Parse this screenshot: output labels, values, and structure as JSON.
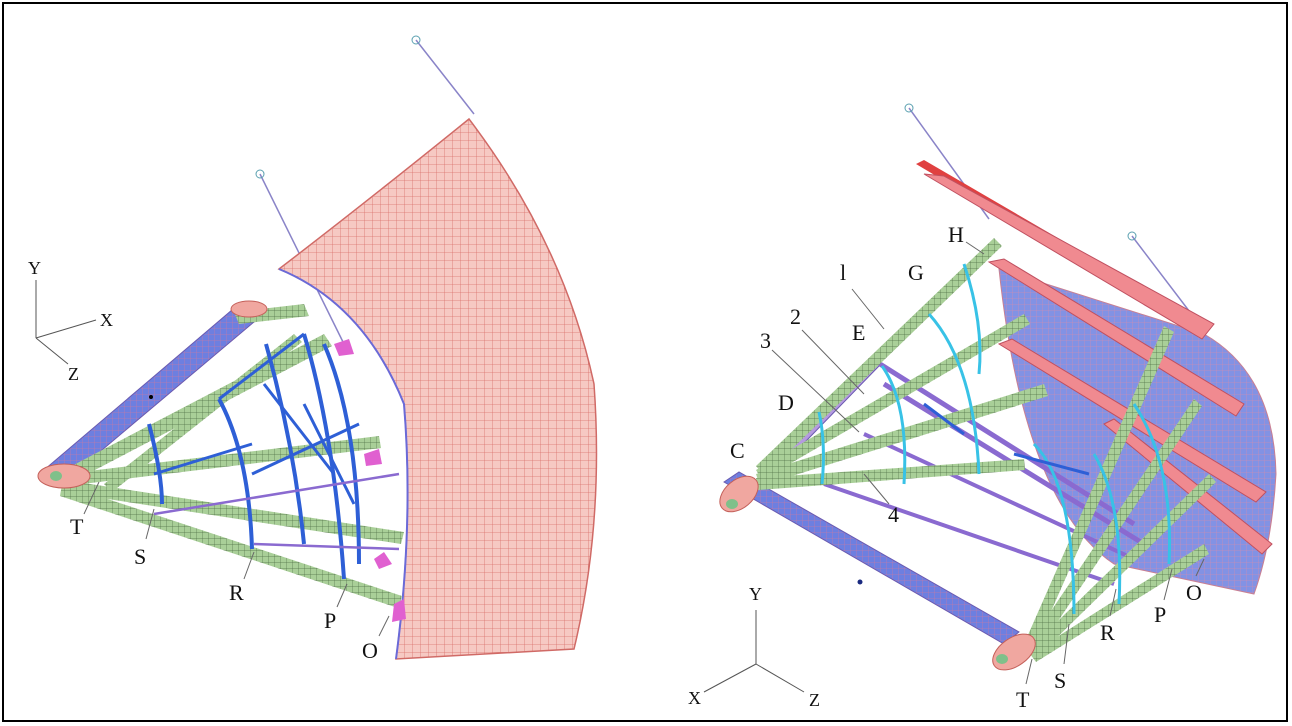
{
  "left_panel": {
    "axes": {
      "y": "Y",
      "x": "X",
      "z": "Z"
    },
    "labels": [
      "T",
      "S",
      "R",
      "P",
      "O"
    ]
  },
  "right_panel": {
    "axes": {
      "y": "Y",
      "x": "X",
      "z": "Z"
    },
    "frame_labels": [
      "H",
      "G",
      "E",
      "D",
      "C"
    ],
    "stringer_labels": [
      "l",
      "2",
      "3",
      "4"
    ],
    "bottom_labels": [
      "T",
      "S",
      "R",
      "P",
      "O"
    ]
  },
  "colors": {
    "skin": "#f2b6b0",
    "skin_mesh": "#d9706b",
    "strut": "#9fc48f",
    "strut_edge": "#4f6f46",
    "rib_blue": "#2e5fd6",
    "rib_cyan": "#38c2e6",
    "purple": "#8a6ad0",
    "magenta": "#e060d0"
  }
}
